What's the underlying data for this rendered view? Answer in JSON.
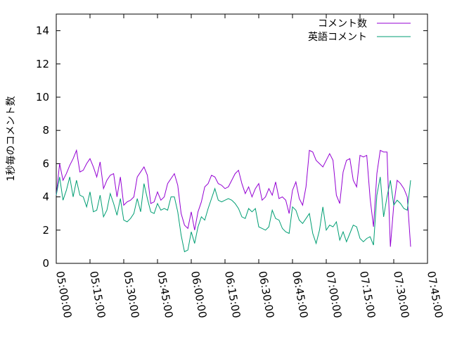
{
  "chart_data": {
    "type": "line",
    "title": "",
    "xlabel": "",
    "ylabel": "1秒毎のコメント数",
    "xlim": [
      "05:00:00",
      "07:45:00"
    ],
    "ylim": [
      0,
      15
    ],
    "grid": false,
    "legend": "top-right",
    "x_ticks": [
      "05:00:00",
      "05:15:00",
      "05:30:00",
      "05:45:00",
      "06:00:00",
      "06:15:00",
      "06:30:00",
      "06:45:00",
      "07:00:00",
      "07:15:00",
      "07:30:00",
      "07:45:00"
    ],
    "y_ticks": [
      0,
      2,
      4,
      6,
      8,
      10,
      12,
      14
    ],
    "x": [
      "05:00:00",
      "05:01:30",
      "05:03:00",
      "05:04:30",
      "05:06:00",
      "05:07:30",
      "05:09:00",
      "05:10:30",
      "05:12:00",
      "05:13:30",
      "05:15:00",
      "05:16:30",
      "05:18:00",
      "05:19:30",
      "05:21:00",
      "05:22:30",
      "05:24:00",
      "05:25:30",
      "05:27:00",
      "05:28:30",
      "05:30:00",
      "05:31:30",
      "05:33:00",
      "05:34:30",
      "05:36:00",
      "05:37:30",
      "05:39:00",
      "05:40:30",
      "05:42:00",
      "05:43:30",
      "05:45:00",
      "05:46:30",
      "05:48:00",
      "05:49:30",
      "05:51:00",
      "05:52:30",
      "05:54:00",
      "05:55:30",
      "05:57:00",
      "05:58:30",
      "06:00:00",
      "06:01:30",
      "06:03:00",
      "06:04:30",
      "06:06:00",
      "06:07:30",
      "06:09:00",
      "06:10:30",
      "06:12:00",
      "06:13:30",
      "06:15:00",
      "06:16:30",
      "06:18:00",
      "06:19:30",
      "06:21:00",
      "06:22:30",
      "06:24:00",
      "06:25:30",
      "06:27:00",
      "06:28:30",
      "06:30:00",
      "06:31:30",
      "06:33:00",
      "06:34:30",
      "06:36:00",
      "06:37:30",
      "06:39:00",
      "06:40:30",
      "06:42:00",
      "06:43:30",
      "06:45:00",
      "06:46:30",
      "06:48:00",
      "06:49:30",
      "06:51:00",
      "06:52:30",
      "06:54:00",
      "06:55:30",
      "06:57:00",
      "06:58:30",
      "07:00:00",
      "07:01:30",
      "07:03:00",
      "07:04:30",
      "07:06:00",
      "07:07:30",
      "07:09:00",
      "07:10:30",
      "07:12:00",
      "07:13:30",
      "07:15:00",
      "07:16:30",
      "07:18:00",
      "07:19:30",
      "07:21:00",
      "07:22:30",
      "07:24:00",
      "07:25:30",
      "07:27:00",
      "07:28:30",
      "07:30:00",
      "07:31:30",
      "07:33:00",
      "07:34:30",
      "07:36:00",
      "07:37:30"
    ],
    "series": [
      {
        "name": "コメント数",
        "color": "#9400d3",
        "values": [
          4.1,
          6.0,
          5.0,
          5.4,
          5.9,
          6.3,
          6.8,
          5.5,
          5.6,
          6.0,
          6.3,
          5.8,
          5.2,
          6.1,
          4.5,
          5.0,
          5.3,
          5.4,
          4.0,
          5.2,
          3.5,
          3.7,
          3.8,
          4.0,
          5.2,
          5.5,
          5.8,
          5.3,
          3.6,
          3.7,
          4.3,
          3.8,
          4.0,
          4.8,
          5.1,
          5.4,
          4.7,
          3.0,
          2.3,
          2.1,
          3.1,
          2.0,
          3.1,
          3.7,
          4.6,
          4.8,
          5.3,
          5.2,
          4.8,
          4.7,
          4.5,
          4.6,
          5.0,
          5.4,
          5.6,
          4.8,
          4.2,
          4.6,
          4.0,
          4.5,
          4.8,
          3.8,
          4.0,
          4.5,
          4.1,
          4.9,
          3.9,
          4.0,
          3.8,
          3.0,
          4.4,
          4.9,
          3.9,
          3.5,
          4.6,
          6.8,
          6.7,
          6.2,
          6.0,
          5.8,
          6.2,
          6.6,
          6.2,
          4.1,
          3.6,
          5.5,
          6.2,
          6.3,
          5.0,
          4.6,
          6.5,
          6.4,
          6.5,
          3.9,
          2.2,
          5.4,
          6.8,
          6.7,
          6.7,
          1.0,
          3.5,
          5.0,
          4.8,
          4.5,
          4.0,
          1.0
        ]
      },
      {
        "name": "英語コメント",
        "color": "#009e73",
        "values": [
          4.1,
          5.2,
          3.8,
          4.4,
          5.2,
          4.0,
          5.0,
          4.1,
          4.0,
          3.4,
          4.3,
          3.1,
          3.2,
          4.1,
          2.8,
          3.2,
          4.2,
          3.6,
          2.9,
          3.9,
          2.6,
          2.5,
          2.7,
          3.0,
          3.9,
          3.1,
          4.8,
          3.9,
          3.1,
          3.0,
          3.6,
          3.2,
          3.3,
          3.2,
          4.0,
          4.0,
          3.1,
          1.7,
          0.7,
          0.8,
          1.9,
          1.2,
          2.2,
          2.8,
          2.6,
          3.3,
          3.9,
          4.5,
          3.8,
          3.7,
          3.8,
          3.9,
          3.8,
          3.6,
          3.3,
          2.8,
          2.7,
          3.3,
          3.1,
          3.3,
          2.2,
          2.1,
          2.0,
          2.2,
          3.2,
          2.7,
          2.6,
          2.1,
          1.9,
          1.8,
          3.4,
          3.2,
          2.6,
          2.4,
          2.7,
          3.0,
          1.8,
          1.2,
          2.0,
          3.4,
          2.0,
          2.3,
          2.2,
          2.5,
          1.4,
          1.9,
          1.3,
          1.8,
          2.3,
          2.2,
          1.5,
          1.3,
          1.5,
          1.6,
          1.1,
          4.1,
          5.2,
          2.8,
          4.0,
          5.0,
          3.5,
          3.8,
          3.6,
          3.3,
          3.2,
          5.0
        ]
      }
    ]
  }
}
